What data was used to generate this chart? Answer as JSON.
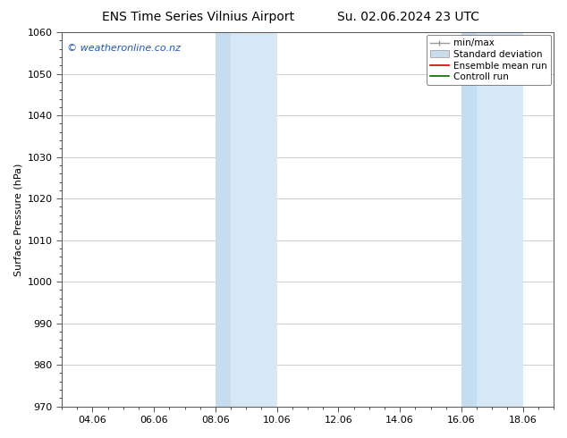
{
  "title_left": "ENS Time Series Vilnius Airport",
  "title_right": "Su. 02.06.2024 23 UTC",
  "ylabel": "Surface Pressure (hPa)",
  "ylim": [
    970,
    1060
  ],
  "yticks": [
    970,
    980,
    990,
    1000,
    1010,
    1020,
    1030,
    1040,
    1050,
    1060
  ],
  "xlim": [
    0,
    16
  ],
  "xtick_positions": [
    1,
    3,
    5,
    7,
    9,
    11,
    13,
    15
  ],
  "xtick_labels": [
    "04.06",
    "06.06",
    "08.06",
    "10.06",
    "12.06",
    "14.06",
    "16.06",
    "18.06"
  ],
  "shade_bands": [
    {
      "x_start": 5.0,
      "x_end": 5.5,
      "color": "#ccdded"
    },
    {
      "x_start": 5.5,
      "x_end": 7.0,
      "color": "#d8eaf6"
    },
    {
      "x_start": 13.0,
      "x_end": 13.5,
      "color": "#ccdded"
    },
    {
      "x_start": 13.5,
      "x_end": 15.0,
      "color": "#d8eaf6"
    }
  ],
  "shade_band_simple": [
    {
      "x_start": 5.0,
      "x_end": 7.0
    },
    {
      "x_start": 13.0,
      "x_end": 15.0
    }
  ],
  "shade_color": "#d6e8f5",
  "shade_color_dark": "#c5ddf0",
  "watermark_text": "© weatheronline.co.nz",
  "watermark_color": "#2255bb",
  "legend_items": [
    {
      "label": "min/max"
    },
    {
      "label": "Standard deviation"
    },
    {
      "label": "Ensemble mean run"
    },
    {
      "label": "Controll run"
    }
  ],
  "minmax_color": "#999999",
  "stddev_color": "#c8dcea",
  "ensemble_color": "#cc0000",
  "control_color": "#006600",
  "bg_color": "#ffffff",
  "grid_color": "#bbbbbb",
  "spine_color": "#555555",
  "tick_color": "#000000",
  "label_font_size": 8,
  "title_font_size": 10,
  "ylabel_font_size": 8
}
